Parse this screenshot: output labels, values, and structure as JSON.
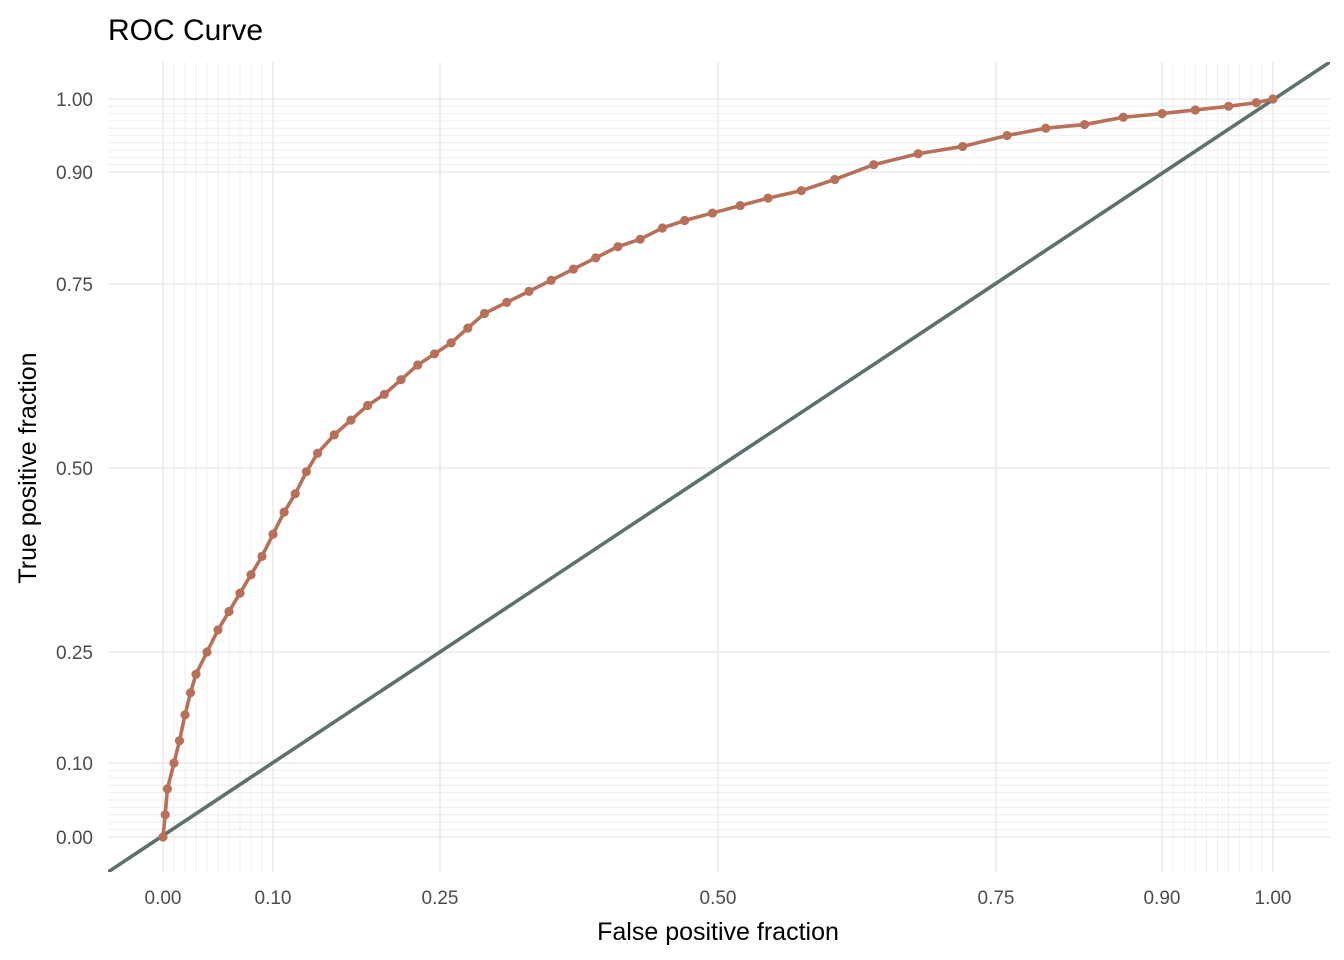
{
  "chart_data": {
    "type": "line",
    "title": "ROC Curve",
    "xlabel": "False positive fraction",
    "ylabel": "True positive fraction",
    "xlim": [
      -0.05,
      1.05
    ],
    "ylim": [
      -0.05,
      1.05
    ],
    "x_ticks": [
      0.0,
      0.1,
      0.25,
      0.5,
      0.75,
      0.9,
      1.0
    ],
    "x_tick_labels": [
      "0.00",
      "0.10",
      "0.25",
      "0.50",
      "0.75",
      "0.90",
      "1.00"
    ],
    "y_ticks": [
      0.0,
      0.1,
      0.25,
      0.5,
      0.75,
      0.9,
      1.0
    ],
    "y_tick_labels": [
      "0.00",
      "0.10",
      "0.25",
      "0.50",
      "0.75",
      "0.90",
      "1.00"
    ],
    "scale": "probit-like (compressed at extremes)",
    "grid": true,
    "colors": {
      "roc": "#b7715a",
      "diagonal": "#5f716d"
    },
    "series": [
      {
        "x": [
          0.0,
          0.002,
          0.004,
          0.01,
          0.015,
          0.02,
          0.025,
          0.03,
          0.04,
          0.05,
          0.06,
          0.07,
          0.08,
          0.09,
          0.1,
          0.11,
          0.12,
          0.13,
          0.14,
          0.155,
          0.17,
          0.185,
          0.2,
          0.215,
          0.23,
          0.245,
          0.26,
          0.275,
          0.29,
          0.31,
          0.33,
          0.35,
          0.37,
          0.39,
          0.41,
          0.43,
          0.45,
          0.47,
          0.495,
          0.52,
          0.545,
          0.575,
          0.605,
          0.64,
          0.68,
          0.72,
          0.76,
          0.795,
          0.83,
          0.865,
          0.9,
          0.93,
          0.96,
          0.985,
          1.0
        ],
        "y": [
          0.0,
          0.03,
          0.065,
          0.1,
          0.13,
          0.165,
          0.195,
          0.22,
          0.25,
          0.28,
          0.305,
          0.33,
          0.355,
          0.38,
          0.41,
          0.44,
          0.465,
          0.495,
          0.52,
          0.545,
          0.565,
          0.585,
          0.6,
          0.62,
          0.64,
          0.655,
          0.67,
          0.69,
          0.71,
          0.725,
          0.74,
          0.755,
          0.77,
          0.785,
          0.8,
          0.81,
          0.825,
          0.835,
          0.845,
          0.855,
          0.865,
          0.875,
          0.89,
          0.91,
          0.925,
          0.935,
          0.95,
          0.96,
          0.965,
          0.975,
          0.98,
          0.985,
          0.99,
          0.995,
          1.0
        ]
      },
      {
        "x": [
          -0.05,
          1.05
        ],
        "y": [
          -0.05,
          1.05
        ]
      }
    ]
  }
}
